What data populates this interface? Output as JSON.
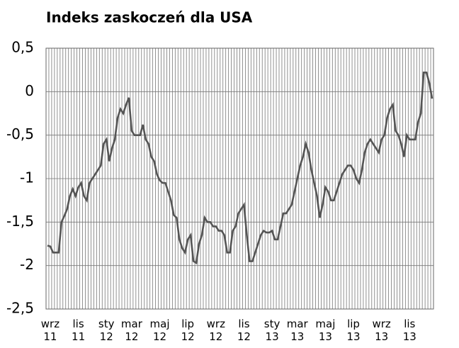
{
  "chart_data": {
    "type": "line",
    "title": "Indeks zaskoczeń dla USA",
    "categories": [
      null,
      "wrz\n11",
      null,
      null,
      null,
      null,
      null,
      null,
      null,
      null,
      null,
      "lis\n11",
      null,
      null,
      null,
      null,
      null,
      null,
      null,
      null,
      null,
      "sty\n12",
      null,
      null,
      null,
      null,
      null,
      null,
      null,
      null,
      "mar\n12",
      null,
      null,
      null,
      null,
      null,
      null,
      null,
      null,
      null,
      "maj\n12",
      null,
      null,
      null,
      null,
      null,
      null,
      null,
      null,
      null,
      "lip\n12",
      null,
      null,
      null,
      null,
      null,
      null,
      null,
      null,
      null,
      "wrz\n12",
      null,
      null,
      null,
      null,
      null,
      null,
      null,
      null,
      null,
      "lis\n12",
      null,
      null,
      null,
      null,
      null,
      null,
      null,
      null,
      null,
      "sty\n13",
      null,
      null,
      null,
      null,
      null,
      null,
      null,
      null,
      "mar\n13",
      null,
      null,
      null,
      null,
      null,
      null,
      null,
      null,
      null,
      "maj\n13",
      null,
      null,
      null,
      null,
      null,
      null,
      null,
      null,
      null,
      "lip\n13",
      null,
      null,
      null,
      null,
      null,
      null,
      null,
      null,
      null,
      "wrz\n13",
      null,
      null,
      null,
      null,
      null,
      null,
      null,
      null,
      null,
      "lis\n13",
      null,
      null,
      null,
      null,
      null,
      null,
      null,
      null
    ],
    "values": [
      -1.77,
      -1.78,
      -1.85,
      -1.85,
      -1.85,
      -1.5,
      -1.43,
      -1.35,
      -1.2,
      -1.12,
      -1.2,
      -1.1,
      -1.05,
      -1.2,
      -1.25,
      -1.05,
      -1.0,
      -0.95,
      -0.9,
      -0.85,
      -0.6,
      -0.55,
      -0.8,
      -0.65,
      -0.55,
      -0.3,
      -0.2,
      -0.25,
      -0.15,
      -0.07,
      -0.45,
      -0.5,
      -0.5,
      -0.5,
      -0.38,
      -0.55,
      -0.6,
      -0.75,
      -0.8,
      -0.95,
      -1.02,
      -1.05,
      -1.05,
      -1.15,
      -1.25,
      -1.42,
      -1.45,
      -1.7,
      -1.8,
      -1.85,
      -1.7,
      -1.65,
      -1.95,
      -1.97,
      -1.75,
      -1.65,
      -1.45,
      -1.5,
      -1.5,
      -1.55,
      -1.55,
      -1.6,
      -1.6,
      -1.65,
      -1.85,
      -1.85,
      -1.6,
      -1.55,
      -1.4,
      -1.35,
      -1.3,
      -1.65,
      -1.95,
      -1.95,
      -1.85,
      -1.75,
      -1.65,
      -1.6,
      -1.62,
      -1.62,
      -1.6,
      -1.7,
      -1.7,
      -1.55,
      -1.4,
      -1.4,
      -1.35,
      -1.3,
      -1.15,
      -1.0,
      -0.85,
      -0.75,
      -0.6,
      -0.7,
      -0.9,
      -1.05,
      -1.2,
      -1.45,
      -1.3,
      -1.1,
      -1.15,
      -1.25,
      -1.25,
      -1.15,
      -1.05,
      -0.95,
      -0.9,
      -0.85,
      -0.85,
      -0.9,
      -1.0,
      -1.05,
      -0.9,
      -0.7,
      -0.6,
      -0.55,
      -0.6,
      -0.65,
      -0.7,
      -0.55,
      -0.5,
      -0.3,
      -0.2,
      -0.15,
      -0.45,
      -0.5,
      -0.6,
      -0.75,
      -0.5,
      -0.55,
      -0.55,
      -0.55,
      -0.35,
      -0.25,
      0.22,
      0.22,
      0.1,
      -0.08
    ],
    "color": "#555555",
    "ylim": [
      -2.5,
      0.5
    ],
    "yticks": [
      {
        "value": 0.5,
        "label": "0,5"
      },
      0,
      {
        "value": -0.5,
        "label": "-0,5"
      },
      -1,
      {
        "value": -1.5,
        "label": "-1,5"
      },
      -2,
      {
        "value": -2.5,
        "label": "-2,5"
      }
    ],
    "grid": true
  }
}
